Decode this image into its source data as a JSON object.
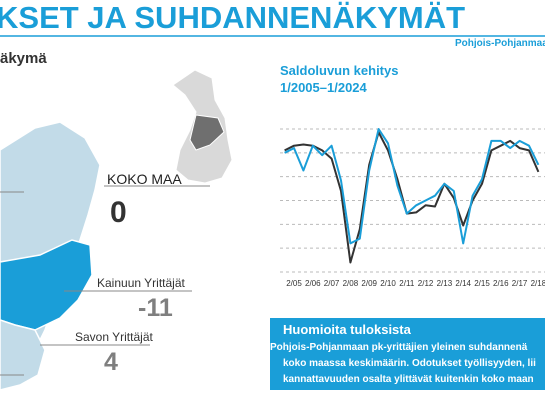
{
  "header": {
    "title": "KSET JA SUHDANNENÄKYMÄT",
    "region": "Pohjois-Pohjanmaan",
    "section": "äkymä"
  },
  "map": {
    "labels": [
      {
        "name": "KOKO MAA",
        "value": 0
      },
      {
        "name": "Kainuun Yrittäjät",
        "value": -11
      },
      {
        "name": "Savon Yrittäjät",
        "value": 4
      }
    ]
  },
  "chart_data": {
    "type": "line",
    "title": "Saldoluvun kehitys",
    "subtitle": "1/2005–1/2024",
    "categories": [
      null,
      "2/05",
      null,
      "2/06",
      null,
      "2/07",
      null,
      "2/08",
      null,
      "2/09",
      null,
      "2/10",
      null,
      "2/11",
      null,
      "2/12",
      null,
      "2/13",
      null,
      "2/14",
      null,
      "2/15",
      null,
      "2/16",
      null,
      "2/17",
      null,
      "2/18"
    ],
    "series": [
      {
        "color": "#333333",
        "values": [
          21,
          23,
          23.5,
          23,
          21,
          17.6,
          4,
          -26,
          -12,
          15,
          28.6,
          21,
          9,
          -5.5,
          -5,
          -2,
          -2.5,
          7,
          1,
          -10.5,
          0,
          7,
          21,
          23,
          25,
          22,
          21,
          12
        ]
      },
      {
        "color": "#1a9ed8",
        "values": [
          20,
          22,
          12.6,
          23,
          19,
          23,
          8.4,
          -18,
          -16,
          12.6,
          30,
          24,
          6.3,
          -5.5,
          -2,
          0,
          2,
          7,
          4,
          -18,
          2,
          9,
          25,
          25,
          22,
          25,
          23,
          15
        ]
      }
    ],
    "ylim": [
      -30,
      30
    ],
    "yticks": [
      -30,
      -20,
      -10,
      0,
      10,
      20,
      30
    ],
    "grid": true
  },
  "notes": {
    "title": "Huomioita tuloksista",
    "lines": [
      "Pohjois-Pohjanmaan pk-yrittäjien yleinen suhdannenä",
      "koko maassa keskimäärin. Odotukset työllisyyden, lii",
      "kannattavuuden osalta ylittävät kuitenkin koko maan"
    ]
  }
}
